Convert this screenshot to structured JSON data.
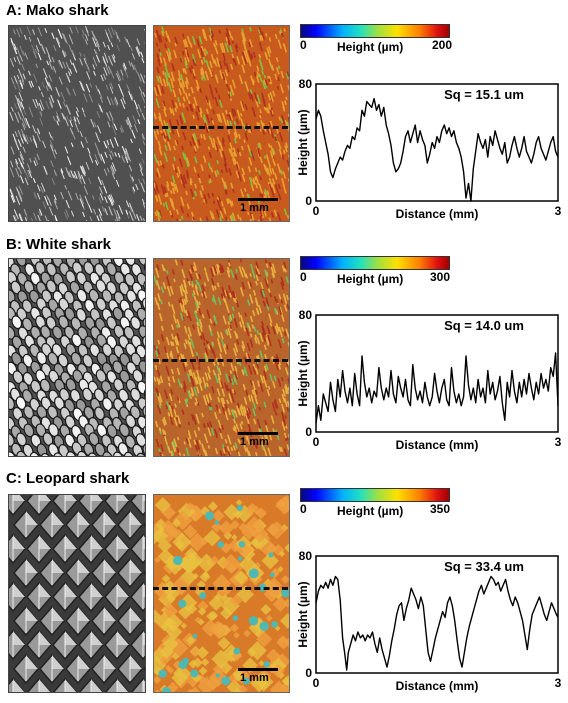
{
  "panels": [
    {
      "title": "A: Mako shark",
      "colorbar": {
        "min": "0",
        "max": "200",
        "label": "Height (µm)"
      },
      "scale_bar": "1 mm",
      "sem_texture": "fine-striated-denticles",
      "map_palette": [
        "#c85a1e",
        "#e6a030",
        "#7fbf40"
      ],
      "sq": "Sq = 15.1 um",
      "ylabel": "Height (µm)",
      "xlabel": "Distance (mm)",
      "y_ticks": [
        "80",
        "0"
      ],
      "x_ticks": [
        "0",
        "3"
      ],
      "ylim": [
        0,
        80
      ],
      "xlim": [
        0,
        3
      ],
      "profile": [
        [
          0,
          56
        ],
        [
          0.03,
          62
        ],
        [
          0.06,
          58
        ],
        [
          0.09,
          48
        ],
        [
          0.12,
          40
        ],
        [
          0.15,
          32
        ],
        [
          0.18,
          20
        ],
        [
          0.21,
          16
        ],
        [
          0.24,
          22
        ],
        [
          0.27,
          26
        ],
        [
          0.3,
          30
        ],
        [
          0.33,
          28
        ],
        [
          0.36,
          34
        ],
        [
          0.39,
          38
        ],
        [
          0.42,
          36
        ],
        [
          0.45,
          44
        ],
        [
          0.48,
          42
        ],
        [
          0.51,
          50
        ],
        [
          0.54,
          48
        ],
        [
          0.57,
          62
        ],
        [
          0.6,
          58
        ],
        [
          0.63,
          68
        ],
        [
          0.66,
          66
        ],
        [
          0.69,
          64
        ],
        [
          0.72,
          70
        ],
        [
          0.75,
          62
        ],
        [
          0.78,
          66
        ],
        [
          0.81,
          58
        ],
        [
          0.84,
          64
        ],
        [
          0.87,
          52
        ],
        [
          0.9,
          46
        ],
        [
          0.93,
          38
        ],
        [
          0.96,
          26
        ],
        [
          0.99,
          20
        ],
        [
          1.02,
          22
        ],
        [
          1.05,
          26
        ],
        [
          1.08,
          34
        ],
        [
          1.11,
          44
        ],
        [
          1.14,
          48
        ],
        [
          1.17,
          40
        ],
        [
          1.2,
          46
        ],
        [
          1.23,
          52
        ],
        [
          1.26,
          40
        ],
        [
          1.29,
          48
        ],
        [
          1.32,
          42
        ],
        [
          1.35,
          38
        ],
        [
          1.38,
          26
        ],
        [
          1.41,
          32
        ],
        [
          1.44,
          40
        ],
        [
          1.47,
          36
        ],
        [
          1.5,
          44
        ],
        [
          1.53,
          40
        ],
        [
          1.56,
          48
        ],
        [
          1.59,
          52
        ],
        [
          1.62,
          46
        ],
        [
          1.65,
          50
        ],
        [
          1.68,
          44
        ],
        [
          1.71,
          48
        ],
        [
          1.74,
          40
        ],
        [
          1.77,
          36
        ],
        [
          1.8,
          30
        ],
        [
          1.83,
          20
        ],
        [
          1.86,
          2
        ],
        [
          1.89,
          12
        ],
        [
          1.92,
          0
        ],
        [
          1.95,
          22
        ],
        [
          1.98,
          34
        ],
        [
          2.01,
          46
        ],
        [
          2.04,
          40
        ],
        [
          2.07,
          36
        ],
        [
          2.1,
          42
        ],
        [
          2.13,
          30
        ],
        [
          2.16,
          44
        ],
        [
          2.19,
          38
        ],
        [
          2.22,
          48
        ],
        [
          2.25,
          42
        ],
        [
          2.28,
          36
        ],
        [
          2.31,
          32
        ],
        [
          2.34,
          40
        ],
        [
          2.37,
          26
        ],
        [
          2.4,
          30
        ],
        [
          2.43,
          38
        ],
        [
          2.46,
          44
        ],
        [
          2.49,
          36
        ],
        [
          2.52,
          30
        ],
        [
          2.55,
          36
        ],
        [
          2.58,
          44
        ],
        [
          2.61,
          34
        ],
        [
          2.64,
          30
        ],
        [
          2.67,
          26
        ],
        [
          2.7,
          32
        ],
        [
          2.73,
          40
        ],
        [
          2.76,
          44
        ],
        [
          2.79,
          36
        ],
        [
          2.82,
          32
        ],
        [
          2.85,
          28
        ],
        [
          2.88,
          34
        ],
        [
          2.91,
          40
        ],
        [
          2.94,
          44
        ],
        [
          2.97,
          34
        ],
        [
          3.0,
          30
        ]
      ]
    },
    {
      "title": "B: White shark",
      "colorbar": {
        "min": "0",
        "max": "300",
        "label": "Height (µm)"
      },
      "scale_bar": "1 mm",
      "sem_texture": "ridged-scales",
      "map_palette": [
        "#b8642a",
        "#e8b040",
        "#6fbf60"
      ],
      "sq": "Sq = 14.0 um",
      "ylabel": "Height (µm)",
      "xlabel": "Distance (mm)",
      "y_ticks": [
        "80",
        "0"
      ],
      "x_ticks": [
        "0",
        "3"
      ],
      "ylim": [
        0,
        80
      ],
      "xlim": [
        0,
        3
      ],
      "profile": [
        [
          0,
          6
        ],
        [
          0.03,
          18
        ],
        [
          0.06,
          8
        ],
        [
          0.09,
          26
        ],
        [
          0.12,
          20
        ],
        [
          0.15,
          14
        ],
        [
          0.18,
          34
        ],
        [
          0.21,
          22
        ],
        [
          0.24,
          14
        ],
        [
          0.27,
          36
        ],
        [
          0.3,
          24
        ],
        [
          0.33,
          42
        ],
        [
          0.36,
          28
        ],
        [
          0.39,
          20
        ],
        [
          0.42,
          30
        ],
        [
          0.45,
          18
        ],
        [
          0.48,
          40
        ],
        [
          0.51,
          26
        ],
        [
          0.54,
          18
        ],
        [
          0.57,
          52
        ],
        [
          0.6,
          34
        ],
        [
          0.63,
          24
        ],
        [
          0.66,
          30
        ],
        [
          0.69,
          20
        ],
        [
          0.72,
          28
        ],
        [
          0.75,
          24
        ],
        [
          0.78,
          44
        ],
        [
          0.81,
          30
        ],
        [
          0.84,
          22
        ],
        [
          0.87,
          30
        ],
        [
          0.9,
          24
        ],
        [
          0.93,
          42
        ],
        [
          0.96,
          26
        ],
        [
          0.99,
          20
        ],
        [
          1.02,
          38
        ],
        [
          1.05,
          30
        ],
        [
          1.08,
          24
        ],
        [
          1.11,
          36
        ],
        [
          1.14,
          22
        ],
        [
          1.17,
          18
        ],
        [
          1.2,
          46
        ],
        [
          1.23,
          30
        ],
        [
          1.26,
          22
        ],
        [
          1.29,
          28
        ],
        [
          1.32,
          20
        ],
        [
          1.35,
          34
        ],
        [
          1.38,
          24
        ],
        [
          1.41,
          18
        ],
        [
          1.44,
          24
        ],
        [
          1.47,
          40
        ],
        [
          1.5,
          28
        ],
        [
          1.53,
          20
        ],
        [
          1.56,
          30
        ],
        [
          1.59,
          36
        ],
        [
          1.62,
          22
        ],
        [
          1.65,
          18
        ],
        [
          1.68,
          44
        ],
        [
          1.71,
          28
        ],
        [
          1.74,
          20
        ],
        [
          1.77,
          26
        ],
        [
          1.8,
          18
        ],
        [
          1.83,
          24
        ],
        [
          1.86,
          52
        ],
        [
          1.89,
          32
        ],
        [
          1.92,
          22
        ],
        [
          1.95,
          30
        ],
        [
          1.98,
          20
        ],
        [
          2.01,
          36
        ],
        [
          2.04,
          24
        ],
        [
          2.07,
          30
        ],
        [
          2.1,
          20
        ],
        [
          2.13,
          42
        ],
        [
          2.16,
          26
        ],
        [
          2.19,
          34
        ],
        [
          2.22,
          22
        ],
        [
          2.25,
          28
        ],
        [
          2.28,
          38
        ],
        [
          2.31,
          20
        ],
        [
          2.34,
          8
        ],
        [
          2.37,
          34
        ],
        [
          2.4,
          24
        ],
        [
          2.43,
          42
        ],
        [
          2.46,
          28
        ],
        [
          2.49,
          20
        ],
        [
          2.52,
          34
        ],
        [
          2.55,
          24
        ],
        [
          2.58,
          36
        ],
        [
          2.61,
          26
        ],
        [
          2.64,
          40
        ],
        [
          2.67,
          30
        ],
        [
          2.7,
          22
        ],
        [
          2.73,
          34
        ],
        [
          2.76,
          26
        ],
        [
          2.79,
          40
        ],
        [
          2.82,
          30
        ],
        [
          2.85,
          36
        ],
        [
          2.88,
          28
        ],
        [
          2.91,
          44
        ],
        [
          2.94,
          38
        ],
        [
          2.97,
          54
        ],
        [
          3.0,
          18
        ]
      ]
    },
    {
      "title": "C: Leopard shark",
      "colorbar": {
        "min": "0",
        "max": "350",
        "label": "Height (µm)"
      },
      "scale_bar": "1 mm",
      "sem_texture": "diamond-denticles",
      "map_palette": [
        "#d87a28",
        "#e8c040",
        "#4fb8b0"
      ],
      "sq": "Sq = 33.4 um",
      "ylabel": "Height (µm)",
      "xlabel": "Distance (mm)",
      "y_ticks": [
        "80",
        "0"
      ],
      "x_ticks": [
        "0",
        "3"
      ],
      "ylim": [
        0,
        80
      ],
      "xlim": [
        0,
        3
      ],
      "profile": [
        [
          0,
          48
        ],
        [
          0.03,
          56
        ],
        [
          0.06,
          60
        ],
        [
          0.09,
          58
        ],
        [
          0.12,
          62
        ],
        [
          0.15,
          58
        ],
        [
          0.18,
          64
        ],
        [
          0.21,
          60
        ],
        [
          0.24,
          66
        ],
        [
          0.27,
          64
        ],
        [
          0.3,
          50
        ],
        [
          0.33,
          24
        ],
        [
          0.36,
          12
        ],
        [
          0.38,
          2
        ],
        [
          0.4,
          14
        ],
        [
          0.43,
          20
        ],
        [
          0.46,
          26
        ],
        [
          0.49,
          22
        ],
        [
          0.52,
          28
        ],
        [
          0.55,
          24
        ],
        [
          0.58,
          26
        ],
        [
          0.61,
          22
        ],
        [
          0.64,
          26
        ],
        [
          0.67,
          24
        ],
        [
          0.7,
          28
        ],
        [
          0.73,
          20
        ],
        [
          0.76,
          14
        ],
        [
          0.79,
          24
        ],
        [
          0.82,
          16
        ],
        [
          0.85,
          10
        ],
        [
          0.88,
          4
        ],
        [
          0.91,
          12
        ],
        [
          0.94,
          22
        ],
        [
          0.97,
          30
        ],
        [
          1.0,
          40
        ],
        [
          1.03,
          46
        ],
        [
          1.06,
          48
        ],
        [
          1.09,
          36
        ],
        [
          1.12,
          44
        ],
        [
          1.15,
          50
        ],
        [
          1.18,
          58
        ],
        [
          1.21,
          54
        ],
        [
          1.24,
          50
        ],
        [
          1.27,
          44
        ],
        [
          1.3,
          52
        ],
        [
          1.33,
          46
        ],
        [
          1.36,
          30
        ],
        [
          1.39,
          14
        ],
        [
          1.42,
          8
        ],
        [
          1.45,
          16
        ],
        [
          1.48,
          24
        ],
        [
          1.51,
          30
        ],
        [
          1.54,
          36
        ],
        [
          1.57,
          42
        ],
        [
          1.6,
          38
        ],
        [
          1.63,
          48
        ],
        [
          1.66,
          52
        ],
        [
          1.69,
          46
        ],
        [
          1.72,
          36
        ],
        [
          1.75,
          22
        ],
        [
          1.78,
          10
        ],
        [
          1.81,
          4
        ],
        [
          1.84,
          14
        ],
        [
          1.87,
          24
        ],
        [
          1.9,
          32
        ],
        [
          1.93,
          38
        ],
        [
          1.96,
          44
        ],
        [
          1.99,
          50
        ],
        [
          2.02,
          56
        ],
        [
          2.05,
          60
        ],
        [
          2.08,
          54
        ],
        [
          2.11,
          58
        ],
        [
          2.14,
          62
        ],
        [
          2.17,
          66
        ],
        [
          2.2,
          64
        ],
        [
          2.23,
          60
        ],
        [
          2.26,
          62
        ],
        [
          2.29,
          56
        ],
        [
          2.32,
          60
        ],
        [
          2.35,
          64
        ],
        [
          2.38,
          56
        ],
        [
          2.41,
          50
        ],
        [
          2.44,
          46
        ],
        [
          2.47,
          52
        ],
        [
          2.5,
          48
        ],
        [
          2.53,
          42
        ],
        [
          2.56,
          36
        ],
        [
          2.59,
          26
        ],
        [
          2.62,
          16
        ],
        [
          2.65,
          30
        ],
        [
          2.68,
          40
        ],
        [
          2.71,
          44
        ],
        [
          2.74,
          48
        ],
        [
          2.77,
          52
        ],
        [
          2.8,
          46
        ],
        [
          2.83,
          40
        ],
        [
          2.86,
          36
        ],
        [
          2.89,
          42
        ],
        [
          2.92,
          48
        ],
        [
          2.95,
          44
        ],
        [
          2.98,
          40
        ],
        [
          3.0,
          38
        ]
      ]
    }
  ]
}
